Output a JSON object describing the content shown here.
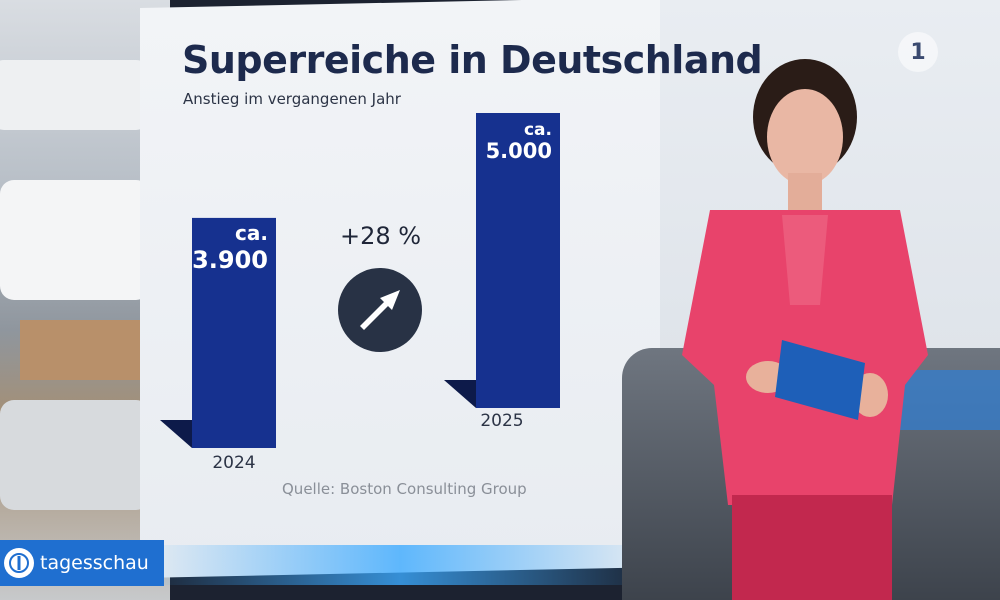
{
  "graphic": {
    "title": "Superreiche in Deutschland",
    "subtitle": "Anstieg im vergangenen Jahr",
    "change_label": "+28 %",
    "source": "Quelle: Boston Consulting Group",
    "bar_color": "#16318f",
    "bar_shadow_color": "#0d1a4a"
  },
  "broadcast": {
    "logo_text": "tagesschau",
    "channel_logo": "1",
    "brand_color": "#1f6fd0"
  },
  "chart_data": {
    "type": "bar",
    "categories": [
      "2024",
      "2025"
    ],
    "values": [
      3900,
      5000
    ],
    "value_labels": [
      {
        "prefix": "ca.",
        "value": "3.900"
      },
      {
        "prefix": "ca.",
        "value": "5.000"
      }
    ],
    "title": "Superreiche in Deutschland",
    "subtitle": "Anstieg im vergangenen Jahr",
    "xlabel": "",
    "ylabel": "",
    "annotation": "+28 %"
  }
}
